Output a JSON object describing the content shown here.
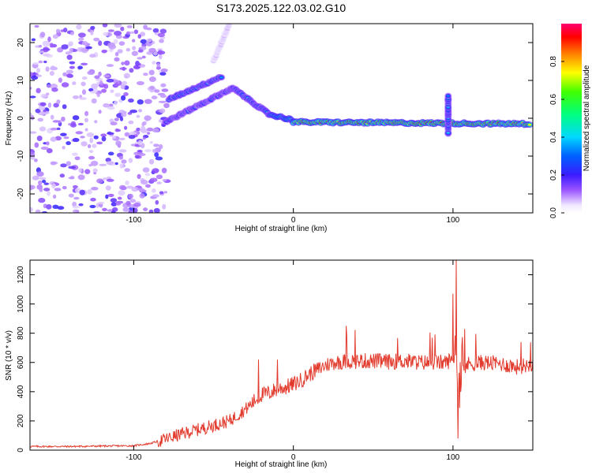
{
  "title": "S173.2025.122.03.02.G10",
  "colors": {
    "snr_line": "#e23b2e",
    "axis": "#000000",
    "background": "#ffffff"
  },
  "chart_data": [
    {
      "type": "heatmap",
      "xlabel": "Height of straight line (km)",
      "ylabel": "Frequency (Hz)",
      "xlim": [
        -165,
        150
      ],
      "ylim": [
        -25,
        25
      ],
      "x_ticks": [
        {
          "value": -100,
          "label": "-100"
        },
        {
          "value": 0,
          "label": "0"
        },
        {
          "value": 100,
          "label": "100"
        }
      ],
      "y_ticks": [
        {
          "value": -20,
          "label": "-20"
        },
        {
          "value": -10,
          "label": "-10"
        },
        {
          "value": 0,
          "label": "0"
        },
        {
          "value": 10,
          "label": "10"
        },
        {
          "value": 20,
          "label": "20"
        }
      ],
      "colorbar": {
        "label": "Normalized spectral amplitude",
        "range": [
          0,
          1
        ],
        "colormap": "rainbow (purple to red to magenta)",
        "ticks": [
          {
            "value": 0.0,
            "label": "0.0"
          },
          {
            "value": 0.2,
            "label": "0.2"
          },
          {
            "value": 0.4,
            "label": "0.4"
          },
          {
            "value": 0.6,
            "label": "0.6"
          },
          {
            "value": 0.8,
            "label": "0.8"
          }
        ]
      },
      "features": [
        {
          "kind": "noise",
          "x": [
            -165,
            -79
          ],
          "y": [
            -25,
            25
          ],
          "amplitude": 0.15
        },
        {
          "kind": "line",
          "x": [
            -78,
            -45
          ],
          "y": [
            5,
            11
          ],
          "amplitude": 0.4
        },
        {
          "kind": "line",
          "x": [
            -80,
            -38
          ],
          "y": [
            -1,
            8
          ],
          "amplitude": 0.35
        },
        {
          "kind": "line",
          "x": [
            -50,
            -40
          ],
          "y": [
            15,
            25
          ],
          "amplitude": 0.12
        },
        {
          "kind": "line",
          "x": [
            -38,
            -15
          ],
          "y": [
            8,
            1
          ],
          "amplitude": 0.4
        },
        {
          "kind": "line",
          "x": [
            -15,
            0
          ],
          "y": [
            1,
            -0.5
          ],
          "amplitude": 0.5
        },
        {
          "kind": "line",
          "x": [
            0,
            148
          ],
          "y": [
            -1,
            -1.5
          ],
          "amplitude": 0.9
        },
        {
          "kind": "line",
          "x": [
            97,
            97
          ],
          "y": [
            -4,
            6
          ],
          "amplitude": 0.4
        }
      ]
    },
    {
      "type": "line",
      "xlabel": "Height of straight line (km)",
      "ylabel": "SNR (10 * v/v)",
      "xlim": [
        -165,
        150
      ],
      "ylim": [
        0,
        1300
      ],
      "x_ticks": [
        {
          "value": -100,
          "label": "-100"
        },
        {
          "value": 0,
          "label": "0"
        },
        {
          "value": 100,
          "label": "100"
        }
      ],
      "y_ticks": [
        {
          "value": 0,
          "label": "0"
        },
        {
          "value": 200,
          "label": "200"
        },
        {
          "value": 400,
          "label": "400"
        },
        {
          "value": 600,
          "label": "600"
        },
        {
          "value": 800,
          "label": "800"
        },
        {
          "value": 1000,
          "label": "1000"
        },
        {
          "value": 1200,
          "label": "1200"
        }
      ],
      "series": [
        {
          "x": [
            -165,
            -140,
            -120,
            -100,
            -90,
            -80,
            -70,
            -60,
            -50,
            -40,
            -30,
            -25,
            -20,
            -15,
            -10,
            -5,
            0,
            5,
            10,
            15,
            20,
            25,
            30,
            40,
            50,
            60,
            70,
            80,
            90,
            95,
            100,
            102,
            104,
            106,
            110,
            120,
            130,
            140,
            150
          ],
          "values": [
            25,
            25,
            28,
            30,
            45,
            75,
            110,
            140,
            170,
            200,
            280,
            330,
            380,
            390,
            420,
            430,
            450,
            480,
            520,
            550,
            580,
            600,
            605,
            610,
            610,
            605,
            610,
            600,
            600,
            600,
            620,
            650,
            300,
            560,
            590,
            600,
            590,
            570,
            590
          ]
        }
      ],
      "spikes": [
        {
          "x": -22,
          "value": 620
        },
        {
          "x": -10,
          "value": 620
        },
        {
          "x": 100,
          "value": 1070
        },
        {
          "x": 102,
          "value": 1300
        },
        {
          "x": 103,
          "value": 80
        }
      ]
    }
  ]
}
